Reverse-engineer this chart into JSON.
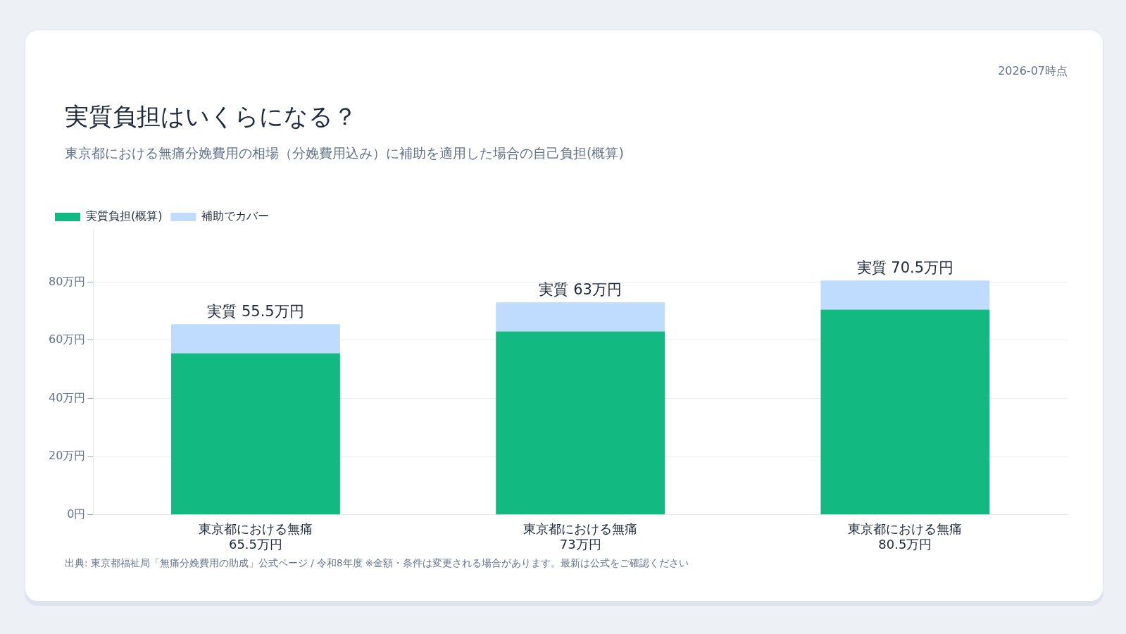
{
  "chart_data": {
    "type": "bar",
    "title": "実質負担はいくらになる？",
    "subtitle": "東京都における無痛分娩費用の相場（分娩費用込み）に補助を適用した場合の自己負担(概算)",
    "annotations": [
      "2026-07時点",
      "出典: 東京都福祉局「無痛分娩費用の助成」公式ページ / 令和8年度 ※金額・条件は変更される場合があります。最新は公式をご確認ください"
    ],
    "categories": [
      "東京都における無痛\n65.5万円",
      "東京都における無痛\n73万円",
      "東京都における無痛\n80.5万円"
    ],
    "stacked": true,
    "series": [
      {
        "name": "実質負担(概算)",
        "color": "#12b981",
        "values": [
          55.5,
          63,
          70.5
        ],
        "value_labels": [
          "実質 55.5万円",
          "実質 63万円",
          "実質 70.5万円"
        ]
      },
      {
        "name": "補助でカバー",
        "color": "#bfdbfe",
        "values": [
          10,
          10,
          10
        ]
      }
    ],
    "ylim": [
      0,
      98
    ],
    "yticks": [
      {
        "value": 0,
        "label": "0円"
      },
      {
        "value": 20,
        "label": "20万円"
      },
      {
        "value": 40,
        "label": "40万円"
      },
      {
        "value": 60,
        "label": "60万円"
      },
      {
        "value": 80,
        "label": "80万円"
      }
    ],
    "grid": "y",
    "legend": "top left"
  }
}
